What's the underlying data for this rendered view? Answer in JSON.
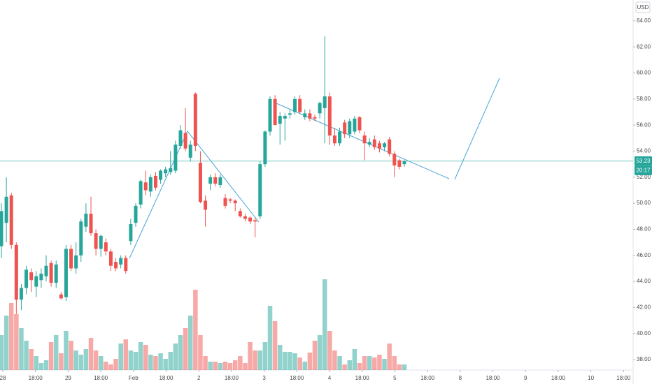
{
  "chart_data": {
    "type": "candlestick",
    "currency": "USD",
    "up_color": "#26a69a",
    "down_color": "#ef5350",
    "candles": [
      [
        46.7,
        50,
        45.8,
        49.4
      ],
      [
        48.5,
        52,
        47,
        50.5
      ],
      [
        50.6,
        50.8,
        46.5,
        46.8
      ],
      [
        46.8,
        47,
        41.5,
        42.6
      ],
      [
        42.6,
        43.8,
        41.8,
        43.5
      ],
      [
        43.5,
        45.2,
        43,
        44.9
      ],
      [
        44.7,
        45,
        43.2,
        44.1
      ],
      [
        43.6,
        44.8,
        42.8,
        44.4
      ],
      [
        44.1,
        45,
        43.5,
        44.6
      ],
      [
        44.4,
        46,
        44,
        45.2
      ],
      [
        45.4,
        45.6,
        43.6,
        43.9
      ],
      [
        43.9,
        45.6,
        43.5,
        45.3
      ],
      [
        43,
        43.2,
        42.6,
        42.7
      ],
      [
        42.8,
        46.8,
        42.5,
        46.5
      ],
      [
        46.5,
        46.8,
        44.8,
        45
      ],
      [
        45,
        47,
        44.6,
        46
      ],
      [
        46,
        48.8,
        45.5,
        48.6
      ],
      [
        48.2,
        50,
        47.8,
        49.2
      ],
      [
        49.2,
        50.5,
        47.5,
        47.7
      ],
      [
        47.7,
        48,
        46,
        46.5
      ],
      [
        46.5,
        47.6,
        45.9,
        47.5
      ],
      [
        47,
        47.3,
        46,
        46.3
      ],
      [
        46.3,
        46.5,
        44.8,
        45.2
      ],
      [
        45.5,
        45.8,
        44.8,
        45
      ],
      [
        45.3,
        46,
        45,
        45.8
      ],
      [
        45.8,
        46,
        44.6,
        44.8
      ],
      [
        47.1,
        48.8,
        46.8,
        48.4
      ],
      [
        48.5,
        50,
        48.2,
        49.8
      ],
      [
        49.9,
        51.8,
        49.6,
        51.7
      ],
      [
        51.6,
        52.5,
        50.6,
        51
      ],
      [
        50.9,
        52.2,
        50.5,
        52
      ],
      [
        52.1,
        52.4,
        51,
        51.2
      ],
      [
        51.8,
        52.6,
        51.5,
        52.5
      ],
      [
        52.3,
        52.8,
        52,
        52.6
      ],
      [
        52.4,
        54,
        52.2,
        52.7
      ],
      [
        52.5,
        54.8,
        52.3,
        54.5
      ],
      [
        54.4,
        56,
        54.2,
        55.6
      ],
      [
        55.4,
        57.3,
        54,
        54.2
      ],
      [
        53.5,
        54.8,
        53.2,
        54.5
      ],
      [
        58.4,
        58.5,
        54,
        54.4
      ],
      [
        53.1,
        54,
        50,
        50.1
      ],
      [
        50.2,
        50.6,
        48.2,
        49.5
      ],
      [
        51.5,
        52.2,
        51,
        52
      ],
      [
        52,
        52.3,
        51.3,
        51.5
      ],
      [
        51.4,
        52.2,
        51.2,
        52
      ],
      [
        50.4,
        50.7,
        49.6,
        49.8
      ],
      [
        50.3,
        50.4,
        50,
        50.2
      ],
      [
        50.2,
        50.3,
        49.4,
        50
      ],
      [
        49.4,
        49.6,
        48.9,
        49
      ],
      [
        49,
        49.2,
        48.6,
        48.8
      ],
      [
        48.9,
        49,
        48.4,
        48.6
      ],
      [
        48.7,
        48.9,
        47.4,
        48.6
      ],
      [
        49,
        53.2,
        48.8,
        53
      ],
      [
        53,
        55.6,
        52.8,
        55.5
      ],
      [
        55.5,
        58.2,
        55.2,
        58
      ],
      [
        58,
        58.3,
        56,
        56
      ],
      [
        56.1,
        57,
        54.5,
        56.7
      ],
      [
        56.5,
        56.9,
        54.8,
        56.7
      ],
      [
        56.8,
        57.2,
        56.5,
        56.9
      ],
      [
        57,
        58.2,
        56.8,
        58
      ],
      [
        58,
        58.3,
        56.9,
        57
      ],
      [
        56.6,
        57.2,
        56.4,
        56.9
      ],
      [
        56.9,
        57.2,
        56.3,
        56.5
      ],
      [
        56.6,
        56.8,
        56.3,
        56.5
      ],
      [
        56.9,
        57.8,
        56.5,
        57.7
      ],
      [
        57.3,
        62.8,
        54.6,
        58.2
      ],
      [
        58.2,
        58.5,
        54.5,
        55.2
      ],
      [
        55.2,
        55.8,
        54.4,
        54.6
      ],
      [
        54.6,
        55.8,
        54.4,
        55.5
      ],
      [
        56.2,
        56.4,
        55,
        55.3
      ],
      [
        55.3,
        56.5,
        55,
        56.3
      ],
      [
        55.5,
        56.7,
        55.3,
        56.5
      ],
      [
        56.6,
        56.7,
        55.4,
        55.6
      ],
      [
        55.2,
        55.5,
        53.3,
        54.6
      ],
      [
        54.5,
        55,
        54.3,
        54.7
      ],
      [
        54.9,
        55.2,
        54.1,
        54.3
      ],
      [
        54.6,
        54.8,
        53.9,
        54.2
      ],
      [
        54.3,
        54.7,
        54,
        54.6
      ],
      [
        54.9,
        55.1,
        53.6,
        53.8
      ],
      [
        53.8,
        54,
        52,
        52.9
      ],
      [
        53.3,
        53.4,
        52.6,
        52.8
      ],
      [
        53,
        53.3,
        52.8,
        53.23
      ]
    ],
    "volume": [
      50,
      78,
      96,
      80,
      60,
      42,
      30,
      20,
      10,
      14,
      40,
      50,
      24,
      56,
      42,
      28,
      22,
      30,
      46,
      28,
      20,
      12,
      8,
      16,
      38,
      44,
      28,
      26,
      40,
      36,
      22,
      20,
      24,
      16,
      26,
      38,
      50,
      60,
      78,
      115,
      50,
      20,
      12,
      12,
      10,
      12,
      10,
      14,
      20,
      10,
      40,
      28,
      28,
      40,
      92,
      70,
      36,
      26,
      26,
      24,
      18,
      12,
      25,
      42,
      50,
      130,
      56,
      28,
      20,
      8,
      14,
      30,
      10,
      20,
      20,
      18,
      22,
      16,
      38,
      20,
      8,
      8
    ],
    "last_price": 53.23,
    "countdown": "20:17",
    "ylim": [
      37.2,
      65.6
    ],
    "yticks": [
      {
        "value": 38,
        "label": "38.00"
      },
      {
        "value": 40,
        "label": "40.00"
      },
      {
        "value": 42,
        "label": "42.00"
      },
      {
        "value": 44,
        "label": "44.00"
      },
      {
        "value": 46,
        "label": "46.00"
      },
      {
        "value": 48,
        "label": "48.00"
      },
      {
        "value": 50,
        "label": "50.00"
      },
      {
        "value": 52,
        "label": "52.00"
      },
      {
        "value": 54,
        "label": "54.00"
      },
      {
        "value": 56,
        "label": "56.00"
      },
      {
        "value": 58,
        "label": "58.00"
      },
      {
        "value": 60,
        "label": "60.00"
      },
      {
        "value": 62,
        "label": "62.00"
      },
      {
        "value": 64,
        "label": "64.00"
      }
    ],
    "xticks": [
      "28",
      "18:00",
      "29",
      "18:00",
      "Feb",
      "18:00",
      "2",
      "18:00",
      "3",
      "18:00",
      "4",
      "18:00",
      "5",
      "18:00",
      "8",
      "18:00",
      "9",
      "18:00",
      "10",
      "18:00"
    ],
    "grid": false
  }
}
